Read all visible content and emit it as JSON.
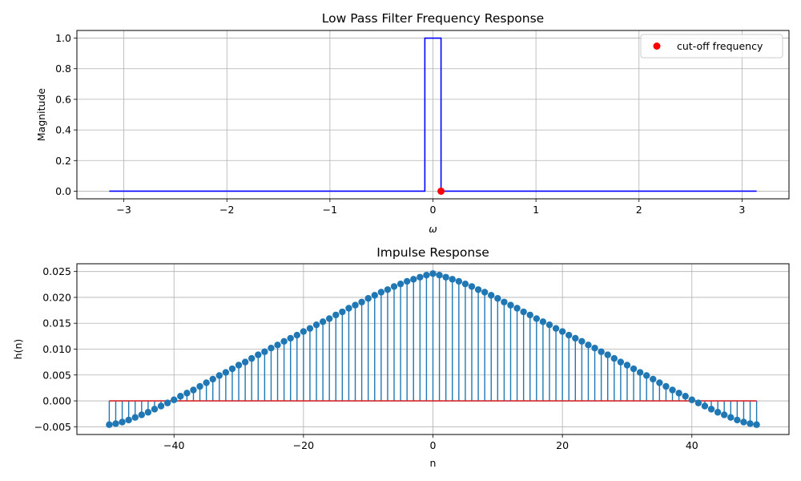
{
  "chart_data": [
    {
      "type": "line",
      "title": "Low Pass Filter Frequency Response",
      "xlabel": "ω",
      "ylabel": "Magnitude",
      "xlim": [
        -3.4558,
        3.4558
      ],
      "ylim": [
        -0.05,
        1.05
      ],
      "xticks": [
        -3,
        -2,
        -1,
        0,
        1,
        2,
        3
      ],
      "xtick_labels": [
        "−3",
        "−2",
        "−1",
        "0",
        "1",
        "2",
        "3"
      ],
      "yticks": [
        0.0,
        0.2,
        0.4,
        0.6,
        0.8,
        1.0
      ],
      "ytick_labels": [
        "0.0",
        "0.2",
        "0.4",
        "0.6",
        "0.8",
        "1.0"
      ],
      "grid": true,
      "legend_position": "top-right",
      "series": [
        {
          "type": "line",
          "color": "#0000ff",
          "x": [
            -3.14159,
            -0.0785,
            -0.0785,
            0.0785,
            0.0785,
            3.14159
          ],
          "y": [
            0,
            0,
            1,
            1,
            0,
            0
          ]
        },
        {
          "name": "cut-off frequency",
          "type": "scatter",
          "color": "#ff0000",
          "x": [
            0.0785
          ],
          "y": [
            0
          ]
        }
      ]
    },
    {
      "type": "stem",
      "title": "Impulse Response",
      "xlabel": "n",
      "ylabel": "h(n)",
      "xlim": [
        -55,
        55
      ],
      "ylim": [
        -0.0065,
        0.0265
      ],
      "xticks": [
        -40,
        -20,
        0,
        20,
        40
      ],
      "xtick_labels": [
        "−40",
        "−20",
        "0",
        "20",
        "40"
      ],
      "yticks": [
        -0.005,
        0.0,
        0.005,
        0.01,
        0.015,
        0.02,
        0.025
      ],
      "ytick_labels": [
        "−0.005",
        "0.000",
        "0.005",
        "0.010",
        "0.015",
        "0.020",
        "0.025"
      ],
      "grid": true,
      "baseline": 0,
      "baseline_color": "#d62728",
      "stem_color": "#1f77b4",
      "n_start": -50,
      "n_end": 50,
      "values": [
        -0.0046,
        -0.0044,
        -0.0041,
        -0.0037,
        -0.0032,
        -0.0027,
        -0.0022,
        -0.0016,
        -0.001,
        -0.0004,
        0.0002,
        0.0009,
        0.0015,
        0.0021,
        0.0028,
        0.0035,
        0.0042,
        0.0049,
        0.0055,
        0.0062,
        0.0069,
        0.0075,
        0.0082,
        0.0089,
        0.0095,
        0.0102,
        0.0108,
        0.0115,
        0.0121,
        0.0127,
        0.0134,
        0.014,
        0.0147,
        0.0153,
        0.0159,
        0.0166,
        0.0172,
        0.0179,
        0.0185,
        0.0191,
        0.0198,
        0.0204,
        0.021,
        0.0215,
        0.0221,
        0.0226,
        0.0231,
        0.0235,
        0.0239,
        0.0243,
        0.0246,
        0.0243,
        0.0239,
        0.0235,
        0.0231,
        0.0226,
        0.0221,
        0.0215,
        0.021,
        0.0204,
        0.0198,
        0.0191,
        0.0185,
        0.0179,
        0.0172,
        0.0166,
        0.0159,
        0.0153,
        0.0147,
        0.014,
        0.0134,
        0.0127,
        0.0121,
        0.0115,
        0.0108,
        0.0102,
        0.0095,
        0.0089,
        0.0082,
        0.0075,
        0.0069,
        0.0062,
        0.0055,
        0.0049,
        0.0042,
        0.0035,
        0.0028,
        0.0021,
        0.0015,
        0.0009,
        0.0002,
        -0.0004,
        -0.001,
        -0.0016,
        -0.0022,
        -0.0027,
        -0.0032,
        -0.0037,
        -0.0041,
        -0.0044,
        -0.0046
      ]
    }
  ]
}
